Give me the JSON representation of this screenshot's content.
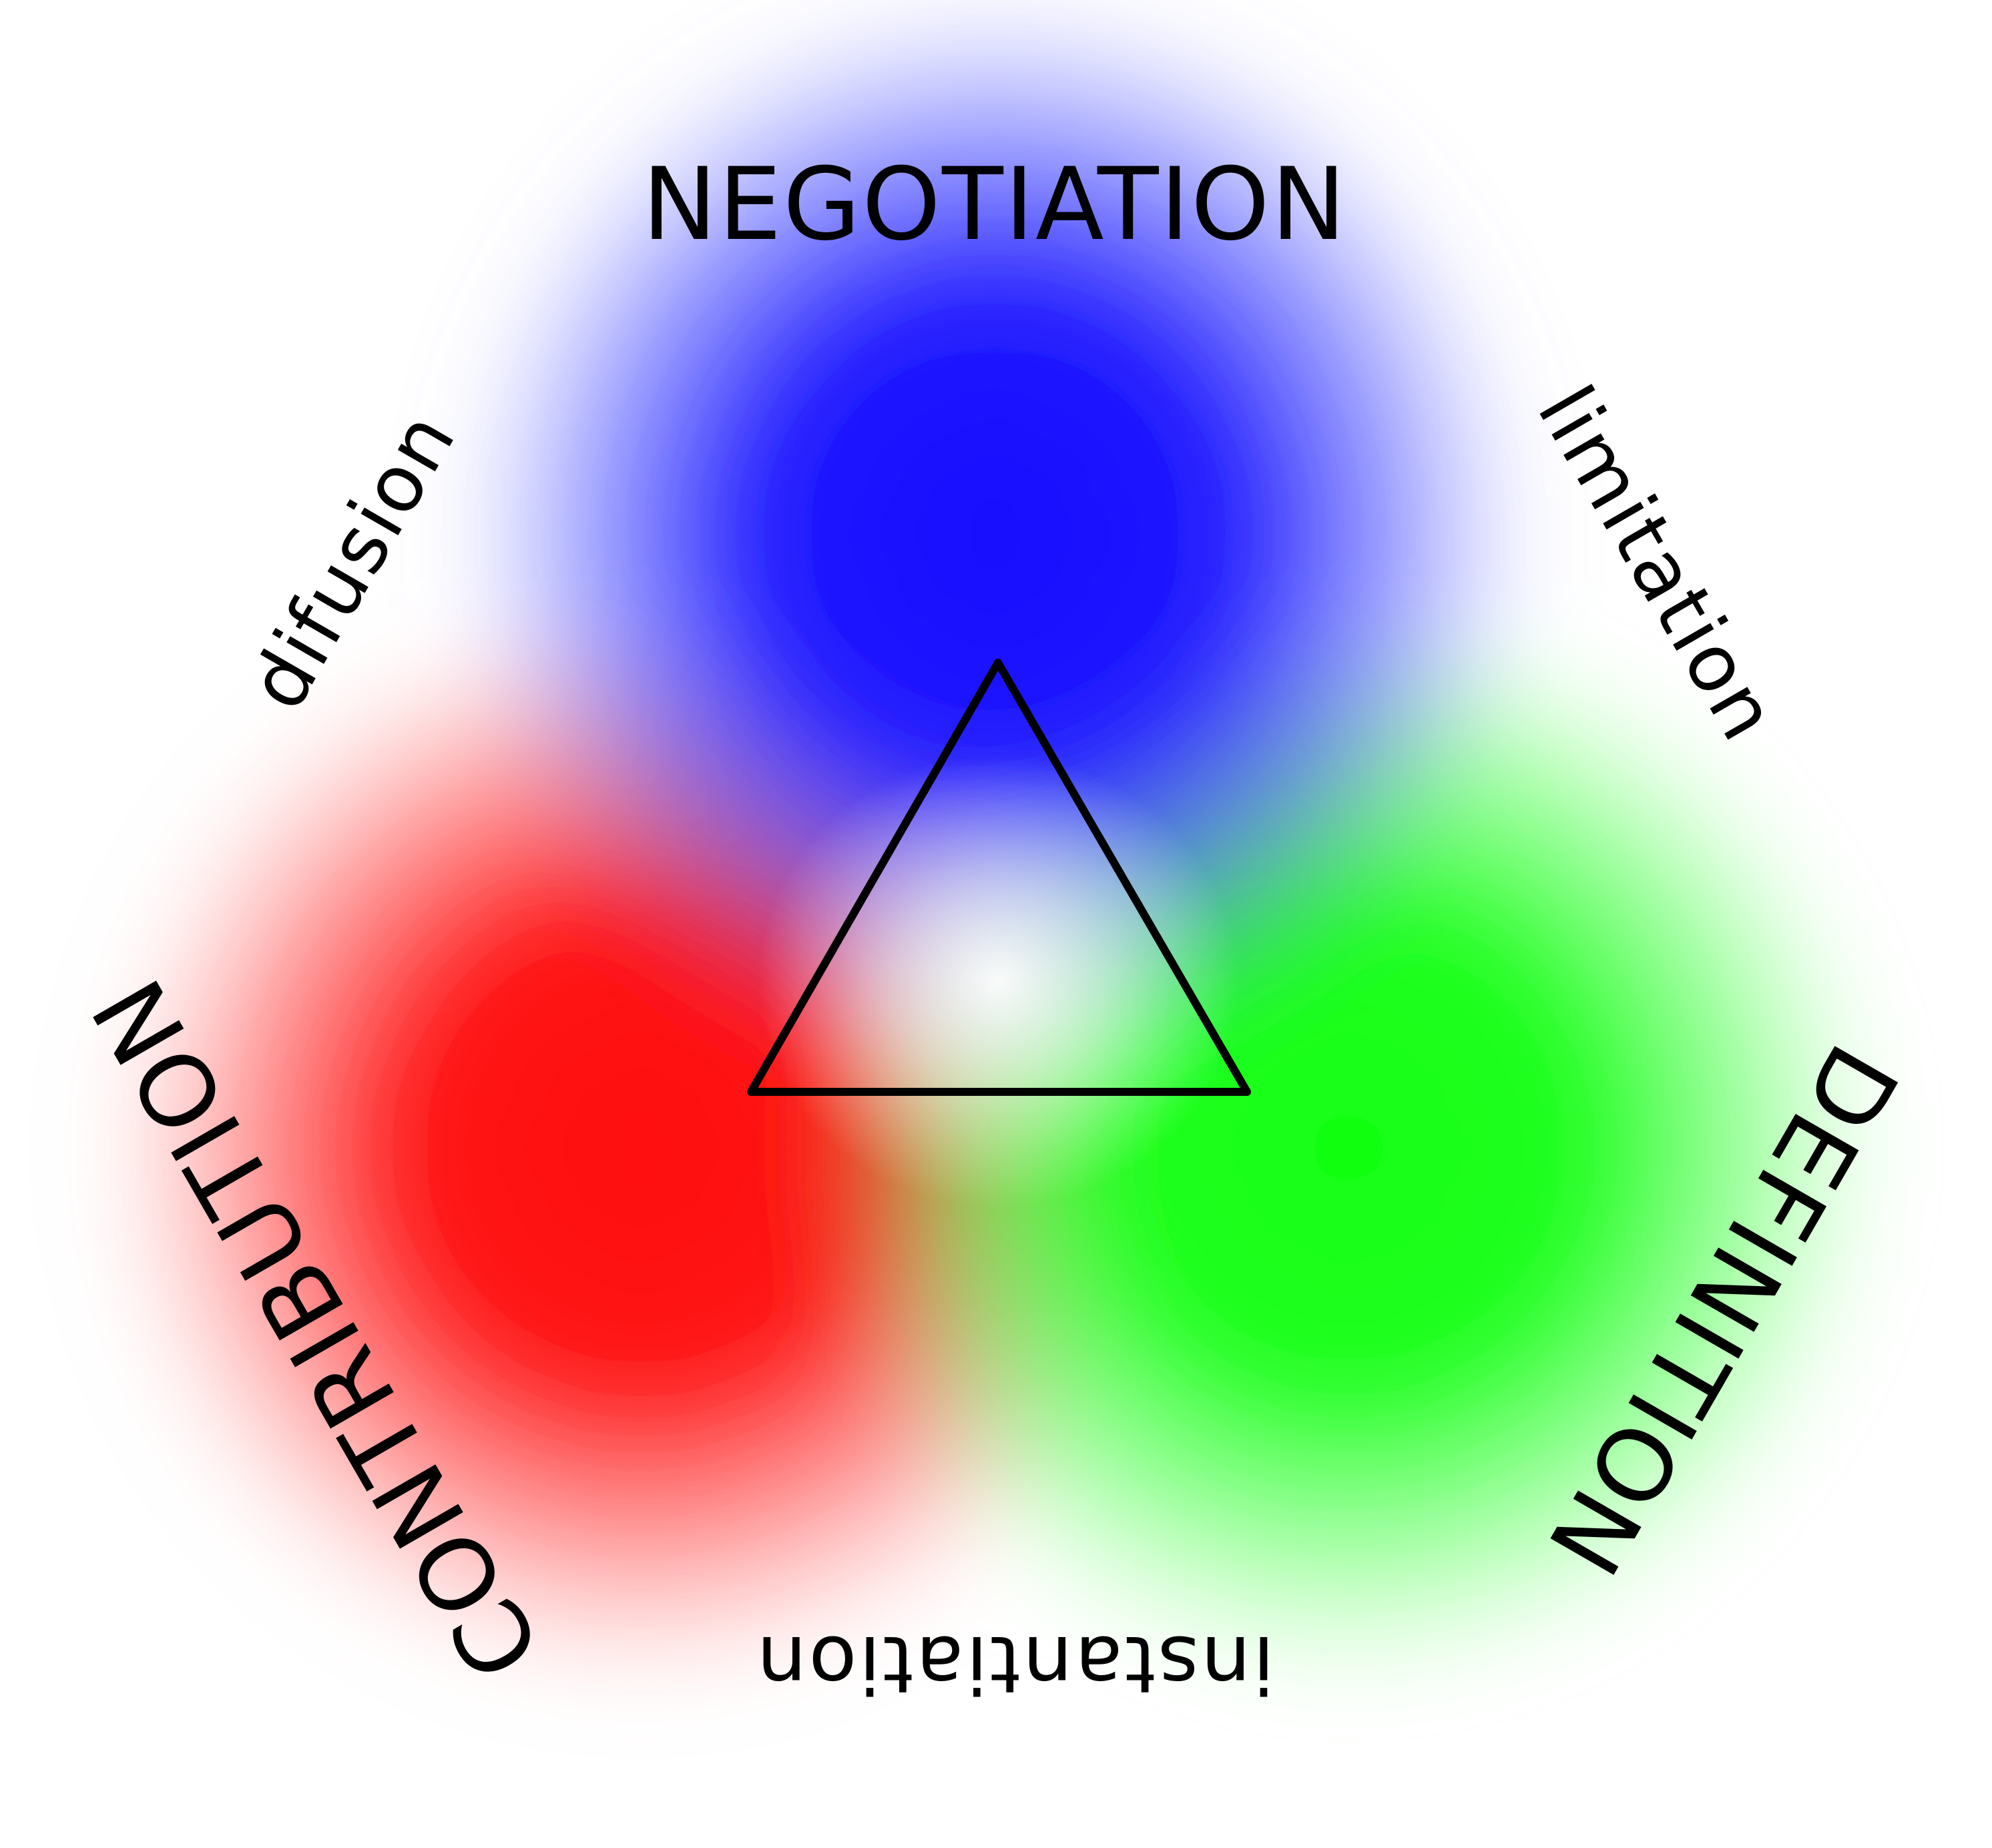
{
  "labels": {
    "negotiation": "NEGOTIATION",
    "definition": "DEFINITION",
    "contribution": "CONTRIBUTION",
    "limitation": "limitation",
    "instantiation": "instantiation",
    "difusion": "difusion"
  },
  "colors": {
    "blue": "#1010ff",
    "green": "#10ff10",
    "red": "#ff1010",
    "triangle_stroke": "#000000",
    "text": "#000000"
  }
}
